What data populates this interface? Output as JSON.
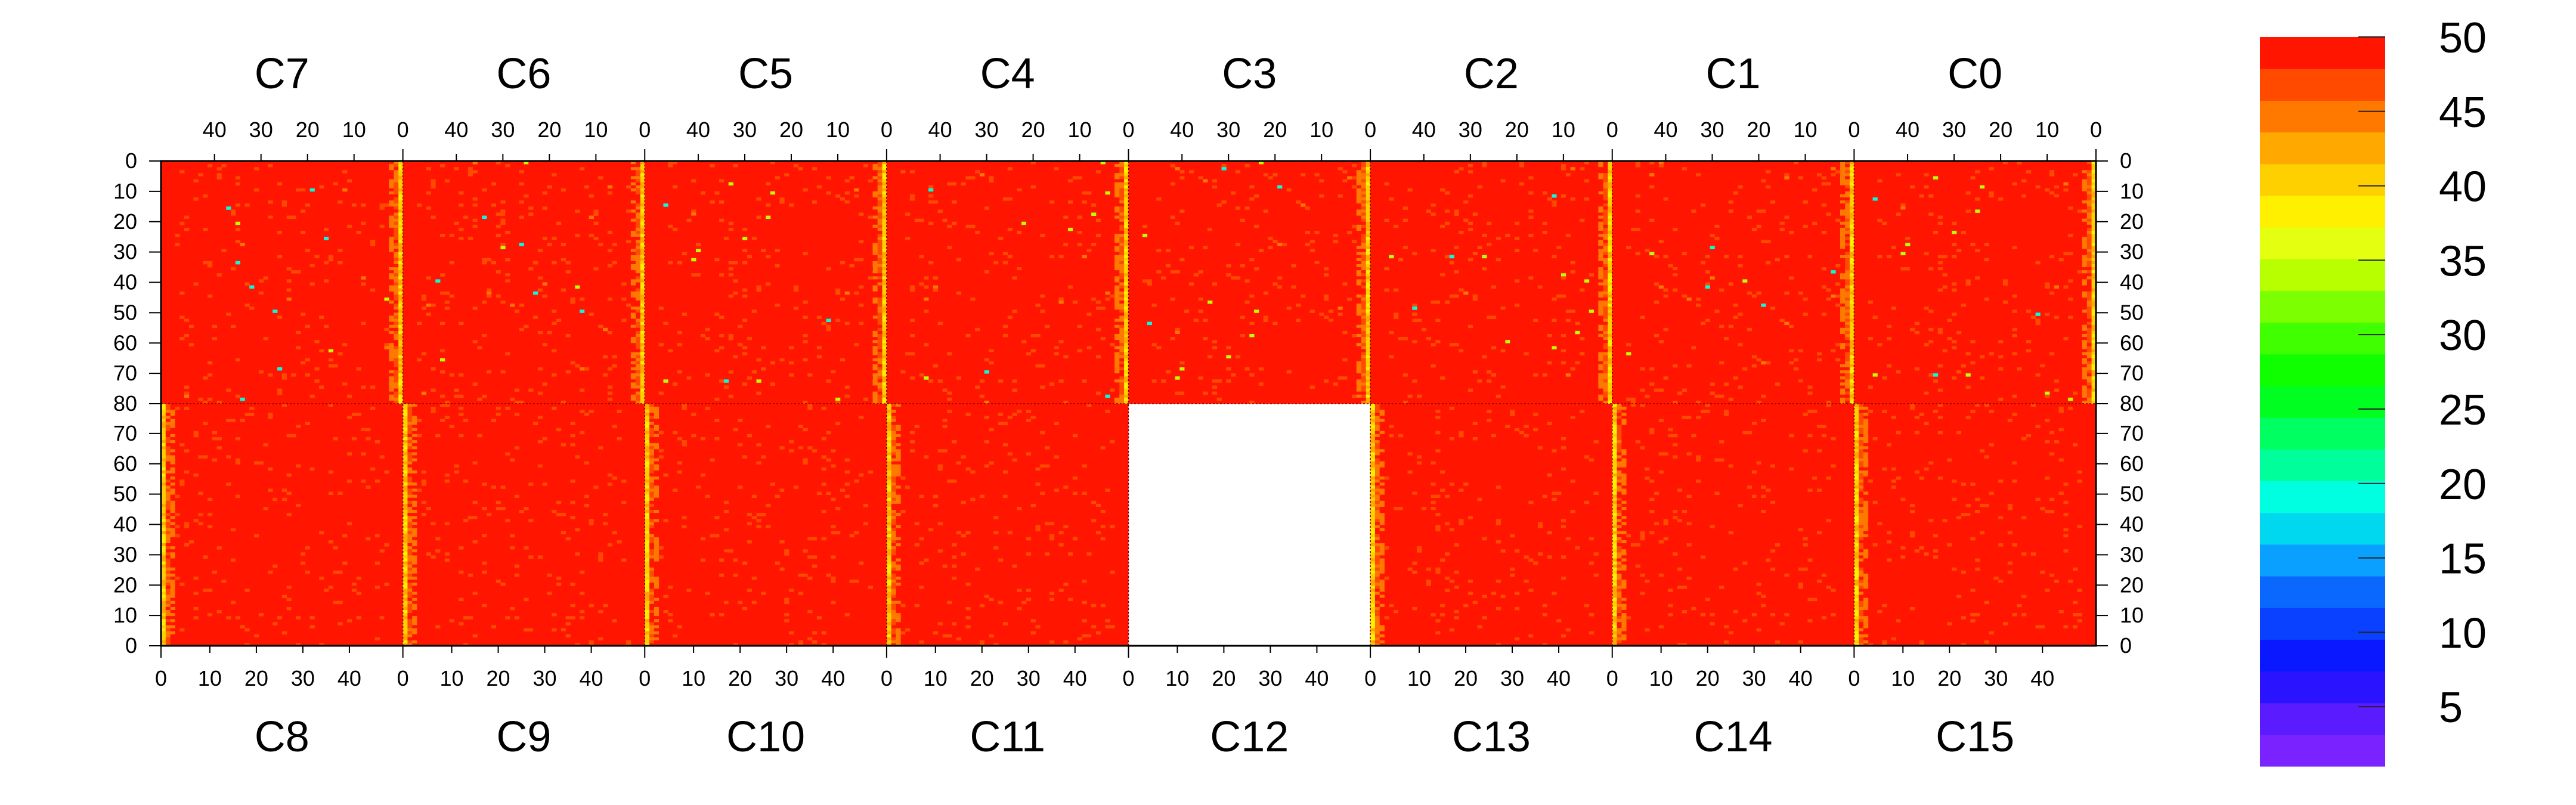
{
  "chart_data": {
    "type": "heatmap",
    "title": "",
    "value_range": [
      1,
      50
    ],
    "colorbar": {
      "ticks": [
        "5",
        "10",
        "15",
        "20",
        "25",
        "30",
        "35",
        "40",
        "45",
        "50"
      ],
      "colors": [
        "#7a22ff",
        "#5a1cff",
        "#2a14ff",
        "#0a18ff",
        "#0a40ff",
        "#0a68ff",
        "#0aa0ff",
        "#00d8f0",
        "#00ffe0",
        "#00ff9a",
        "#00ff60",
        "#00ff20",
        "#10ff00",
        "#40ff00",
        "#7cff00",
        "#b8ff00",
        "#e4ff10",
        "#fff000",
        "#ffd000",
        "#ffa800",
        "#ff7800",
        "#ff4a00",
        "#ff1500"
      ]
    },
    "top_row": {
      "chips": [
        "C7",
        "C6",
        "C5",
        "C4",
        "C3",
        "C2",
        "C1",
        "C0"
      ],
      "column_ticks": [
        "40",
        "30",
        "20",
        "10",
        "0"
      ],
      "row_ticks": [
        "0",
        "10",
        "20",
        "30",
        "40",
        "50",
        "60",
        "70",
        "80"
      ]
    },
    "bottom_row": {
      "chips": [
        "C8",
        "C9",
        "C10",
        "C11",
        "C12",
        "C13",
        "C14",
        "C15"
      ],
      "column_ticks": [
        "0",
        "10",
        "20",
        "30",
        "40"
      ],
      "row_ticks": [
        "70",
        "60",
        "50",
        "40",
        "30",
        "20",
        "10",
        "0"
      ]
    },
    "first_column_tick": "0",
    "chips_without_data": [
      "C12"
    ],
    "typical_chip_value": 50,
    "edge_column_values": [
      38,
      44
    ],
    "scatter_low_values": [
      20,
      35,
      45
    ]
  }
}
